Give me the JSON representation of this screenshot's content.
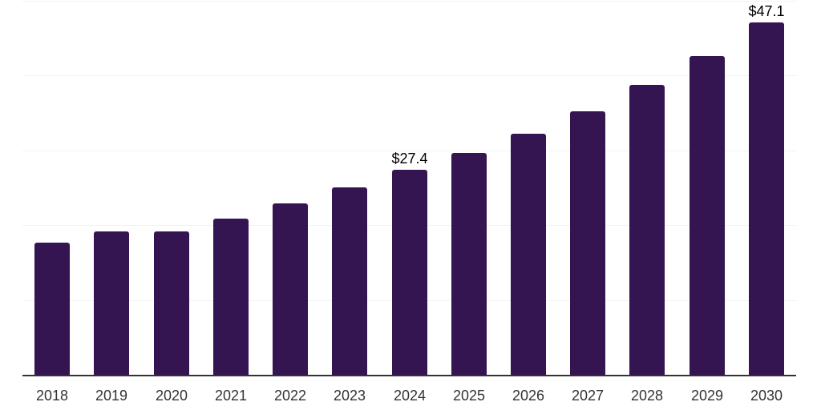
{
  "chart_data": {
    "type": "bar",
    "title": "",
    "xlabel": "",
    "ylabel": "",
    "categories": [
      "2018",
      "2019",
      "2020",
      "2021",
      "2022",
      "2023",
      "2024",
      "2025",
      "2026",
      "2027",
      "2028",
      "2029",
      "2030"
    ],
    "values": [
      17.6,
      19.1,
      19.1,
      20.9,
      22.9,
      25.0,
      27.4,
      29.6,
      32.2,
      35.2,
      38.7,
      42.6,
      47.1
    ],
    "data_labels": [
      "",
      "",
      "",
      "",
      "",
      "",
      "$27.4",
      "",
      "",
      "",
      "",
      "",
      "$47.1"
    ],
    "ylim": [
      0,
      50
    ],
    "gridline_values": [
      10,
      20,
      30,
      40,
      50
    ],
    "grid": true,
    "legend_position": "none",
    "colors": {
      "bar": "#341551",
      "axis_line": "#333333",
      "gridline": "#F2F2F2",
      "tick_label": "#333333",
      "data_label": "#000000"
    }
  }
}
